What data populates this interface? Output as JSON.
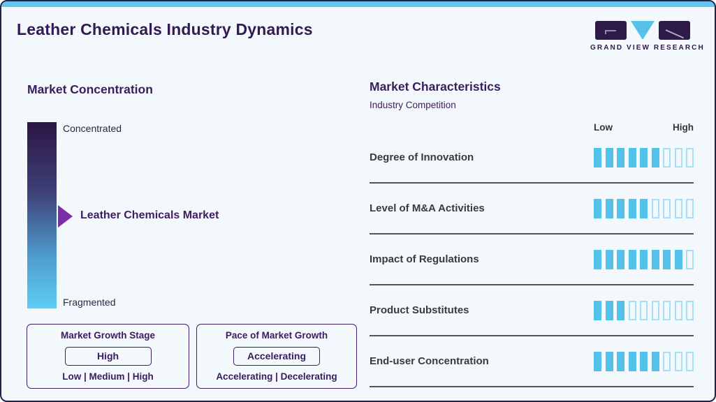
{
  "header": {
    "title": "Leather Chemicals Industry Dynamics",
    "logo_text": "GRAND VIEW RESEARCH"
  },
  "market_concentration": {
    "title": "Market Concentration",
    "top_label": "Concentrated",
    "bottom_label": "Fragmented",
    "marker_label": "Leather Chemicals Market"
  },
  "growth_boxes": [
    {
      "title": "Market Growth Stage",
      "value": "High",
      "options": "Low | Medium | High"
    },
    {
      "title": "Pace of Market Growth",
      "value": "Accelerating",
      "options": "Accelerating | Decelerating"
    }
  ],
  "market_characteristics": {
    "title": "Market Characteristics",
    "subtitle": "Industry Competition",
    "scale_low": "Low",
    "scale_high": "High",
    "rows": [
      {
        "label": "Degree of Innovation",
        "filled": 6,
        "total": 9
      },
      {
        "label": "Level of M&A Activities",
        "filled": 5,
        "total": 9
      },
      {
        "label": "Impact of Regulations",
        "filled": 8,
        "total": 9
      },
      {
        "label": "Product Substitutes",
        "filled": 3,
        "total": 9
      },
      {
        "label": "End-user Concentration",
        "filled": 6,
        "total": 9
      }
    ]
  },
  "chart_data": {
    "type": "bar",
    "title": "Market Characteristics - Industry Competition",
    "categories": [
      "Degree of Innovation",
      "Level of M&A Activities",
      "Impact of Regulations",
      "Product Substitutes",
      "End-user Concentration"
    ],
    "values": [
      6,
      5,
      8,
      3,
      6
    ],
    "scale": {
      "min": 0,
      "max": 9,
      "low_label": "Low",
      "high_label": "High"
    },
    "legend": "none",
    "annotations": {
      "market_concentration_axis": [
        "Concentrated",
        "Fragmented"
      ],
      "market_position": "Leather Chemicals Market",
      "market_growth_stage": "High",
      "pace_of_market_growth": "Accelerating"
    }
  },
  "colors": {
    "brand_purple": "#2e1a47",
    "heading_purple": "#3b1d5e",
    "arrow_purple": "#7b2daa",
    "accent_blue": "#56c2ea",
    "bar_filled": "#53c1e9",
    "bar_empty_border": "#a5def5",
    "text_charcoal": "#3d3844",
    "background": "#f2f8fc"
  }
}
